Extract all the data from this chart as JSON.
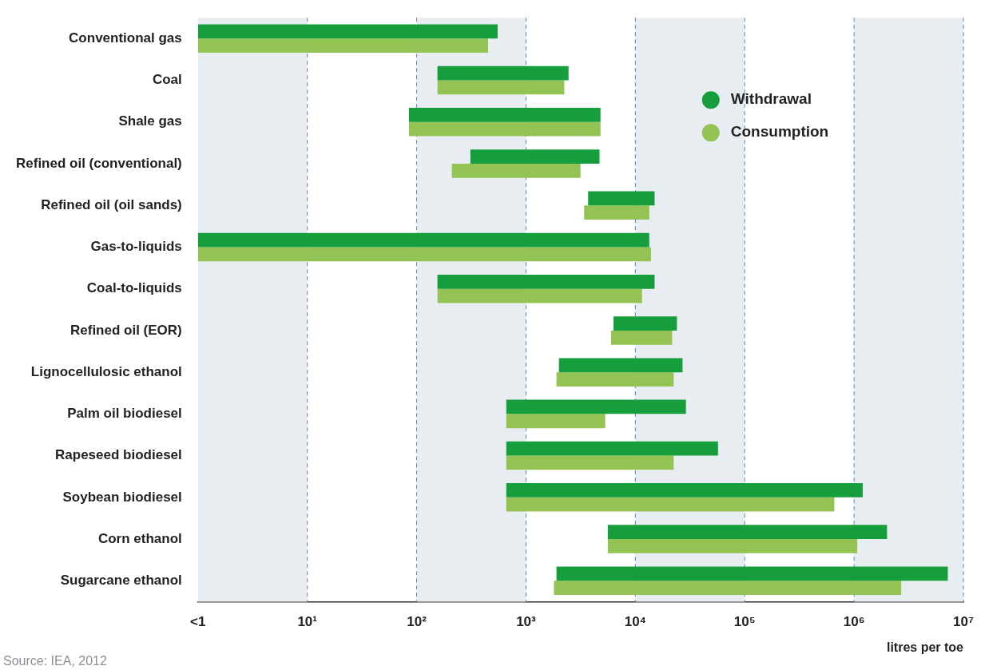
{
  "chart_data": {
    "type": "bar",
    "orientation": "horizontal",
    "log": "x",
    "xlabel": "litres per toe",
    "categories": [
      "Conventional gas",
      "Coal",
      "Shale gas",
      "Refined oil (conventional)",
      "Refined oil (oil sands)",
      "Gas-to-liquids",
      "Coal-to-liquids",
      "Refined oil (EOR)",
      "Lignocellulosic ethanol",
      "Palm oil biodiesel",
      "Rapeseed biodiesel",
      "Soybean biodiesel",
      "Corn ethanol",
      "Sugarcane ethanol"
    ],
    "series": [
      {
        "name": "Withdrawal",
        "color": "#169e3c",
        "base": [
          1,
          155,
          85,
          310,
          3700,
          1,
          155,
          6300,
          2000,
          660,
          660,
          660,
          5600,
          1900
        ],
        "values": [
          549,
          2295,
          4715,
          4390,
          11300,
          13399,
          14845,
          17700,
          25000,
          28340,
          56340,
          1199340,
          1994400,
          7198100
        ]
      },
      {
        "name": "Consumption",
        "color": "#93c353",
        "base": [
          1,
          155,
          85,
          210,
          3400,
          1,
          155,
          6000,
          1900,
          660,
          660,
          660,
          5600,
          1800
        ],
        "values": [
          449,
          2085,
          4715,
          2940,
          10000,
          13899,
          11345,
          15700,
          20500,
          4640,
          21740,
          659340,
          1064400,
          2698200
        ]
      }
    ],
    "xlim": [
      1,
      10000000
    ],
    "xticks": [
      {
        "value": 1,
        "label": "<1"
      },
      {
        "value": 10,
        "label": "10¹"
      },
      {
        "value": 100,
        "label": "10²"
      },
      {
        "value": 1000,
        "label": "10³"
      },
      {
        "value": 10000,
        "label": "10⁴"
      },
      {
        "value": 100000,
        "label": "10⁵"
      },
      {
        "value": 1000000,
        "label": "10⁶"
      },
      {
        "value": 10000000,
        "label": "10⁷"
      }
    ],
    "bands": [
      {
        "axis": "x",
        "from": 1,
        "to": 10,
        "color": "#e8edf1"
      },
      {
        "axis": "x",
        "from": 100,
        "to": 1000,
        "color": "#e8edf1"
      },
      {
        "axis": "x",
        "from": 10000,
        "to": 100000,
        "color": "#e8edf1"
      },
      {
        "axis": "x",
        "from": 1000000,
        "to": 10000000,
        "color": "#e8edf1"
      }
    ],
    "grid": "x",
    "legend": "top right",
    "marker": "circle",
    "annotations": [
      "Source: IEA, 2012"
    ]
  }
}
